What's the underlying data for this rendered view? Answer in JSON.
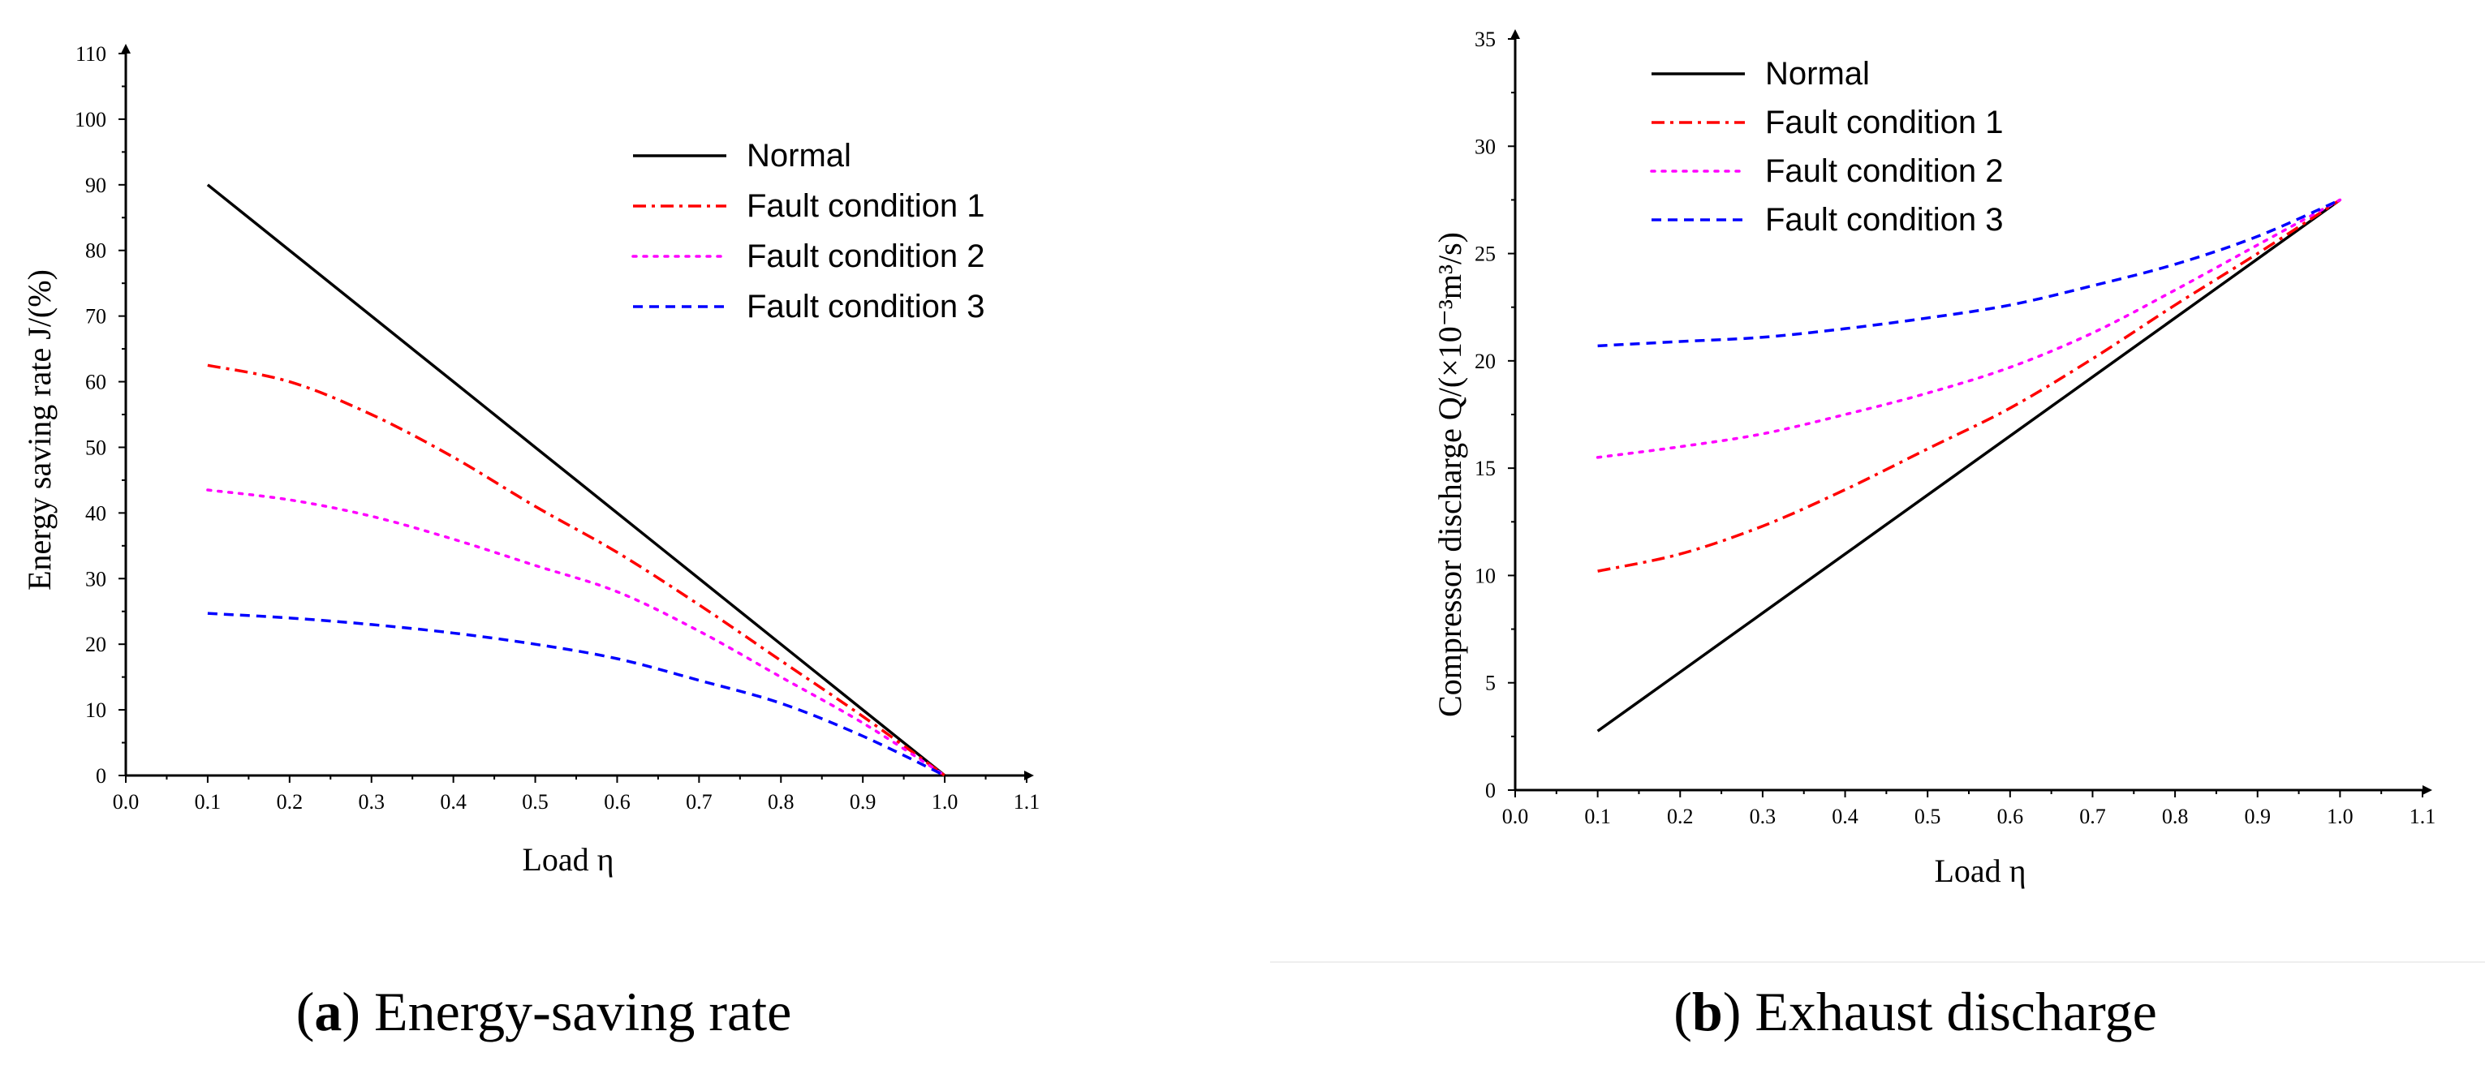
{
  "chart_data": [
    {
      "type": "line",
      "panel_letter": "a",
      "caption": "Energy-saving rate",
      "xlabel": "Load η",
      "ylabel": "Energy saving rate J/(%)",
      "xlim": [
        0.0,
        1.1
      ],
      "ylim": [
        0,
        110
      ],
      "xticks": [
        "0.0",
        "0.1",
        "0.2",
        "0.3",
        "0.4",
        "0.5",
        "0.6",
        "0.7",
        "0.8",
        "0.9",
        "1.0",
        "1.1"
      ],
      "yticks": [
        "0",
        "10",
        "20",
        "30",
        "40",
        "50",
        "60",
        "70",
        "80",
        "90",
        "100",
        "110"
      ],
      "legend_position": "upper-right",
      "grid": false,
      "series": [
        {
          "name": "Normal",
          "color": "#000000",
          "dash": "solid",
          "x": [
            0.1,
            0.2,
            0.3,
            0.4,
            0.5,
            0.6,
            0.7,
            0.8,
            0.9,
            1.0
          ],
          "y": [
            90,
            80,
            70,
            60,
            50,
            40,
            30,
            20,
            10,
            0
          ]
        },
        {
          "name": "Fault condition 1",
          "color": "#ff0000",
          "dash": "dashdot",
          "x": [
            0.1,
            0.2,
            0.3,
            0.4,
            0.5,
            0.6,
            0.7,
            0.8,
            0.9,
            1.0
          ],
          "y": [
            62.5,
            60,
            55,
            48.5,
            41,
            34,
            26,
            17.5,
            9,
            0
          ]
        },
        {
          "name": "Fault condition 2",
          "color": "#ff00ff",
          "dash": "dot",
          "x": [
            0.1,
            0.2,
            0.3,
            0.4,
            0.5,
            0.6,
            0.7,
            0.8,
            0.9,
            1.0
          ],
          "y": [
            43.5,
            42,
            39.5,
            36,
            32,
            28,
            22,
            15,
            8,
            0
          ]
        },
        {
          "name": "Fault condition 3",
          "color": "#0000ff",
          "dash": "dash",
          "x": [
            0.1,
            0.2,
            0.3,
            0.4,
            0.5,
            0.6,
            0.7,
            0.8,
            0.9,
            1.0
          ],
          "y": [
            24.7,
            24,
            23,
            21.7,
            20,
            17.8,
            14.5,
            11,
            6,
            0
          ]
        }
      ]
    },
    {
      "type": "line",
      "panel_letter": "b",
      "caption": "Exhaust discharge",
      "xlabel": "Load η",
      "ylabel": "Compressor discharge Q/(×10⁻³m³/s)",
      "xlim": [
        0.0,
        1.1
      ],
      "ylim": [
        0,
        35
      ],
      "xticks": [
        "0.0",
        "0.1",
        "0.2",
        "0.3",
        "0.4",
        "0.5",
        "0.6",
        "0.7",
        "0.8",
        "0.9",
        "1.0",
        "1.1"
      ],
      "yticks": [
        "0",
        "5",
        "10",
        "15",
        "20",
        "25",
        "30",
        "35"
      ],
      "legend_position": "upper-left",
      "grid": false,
      "series": [
        {
          "name": "Normal",
          "color": "#000000",
          "dash": "solid",
          "x": [
            0.1,
            0.2,
            0.3,
            0.4,
            0.5,
            0.6,
            0.7,
            0.8,
            0.9,
            1.0
          ],
          "y": [
            2.75,
            5.5,
            8.25,
            11,
            13.75,
            16.5,
            19.25,
            22,
            24.75,
            27.5
          ]
        },
        {
          "name": "Fault condition 1",
          "color": "#ff0000",
          "dash": "dashdot",
          "x": [
            0.1,
            0.2,
            0.3,
            0.4,
            0.5,
            0.6,
            0.7,
            0.8,
            0.9,
            1.0
          ],
          "y": [
            10.2,
            11,
            12.3,
            14,
            15.9,
            17.8,
            20.1,
            22.6,
            25,
            27.5
          ]
        },
        {
          "name": "Fault condition 2",
          "color": "#ff00ff",
          "dash": "dot",
          "x": [
            0.1,
            0.2,
            0.3,
            0.4,
            0.5,
            0.6,
            0.7,
            0.8,
            0.9,
            1.0
          ],
          "y": [
            15.5,
            16,
            16.6,
            17.5,
            18.5,
            19.7,
            21.3,
            23.3,
            25.4,
            27.5
          ]
        },
        {
          "name": "Fault condition 3",
          "color": "#0000ff",
          "dash": "dash",
          "x": [
            0.1,
            0.2,
            0.3,
            0.4,
            0.5,
            0.6,
            0.7,
            0.8,
            0.9,
            1.0
          ],
          "y": [
            20.7,
            20.9,
            21.1,
            21.5,
            22,
            22.6,
            23.5,
            24.5,
            25.8,
            27.5
          ]
        }
      ]
    }
  ]
}
